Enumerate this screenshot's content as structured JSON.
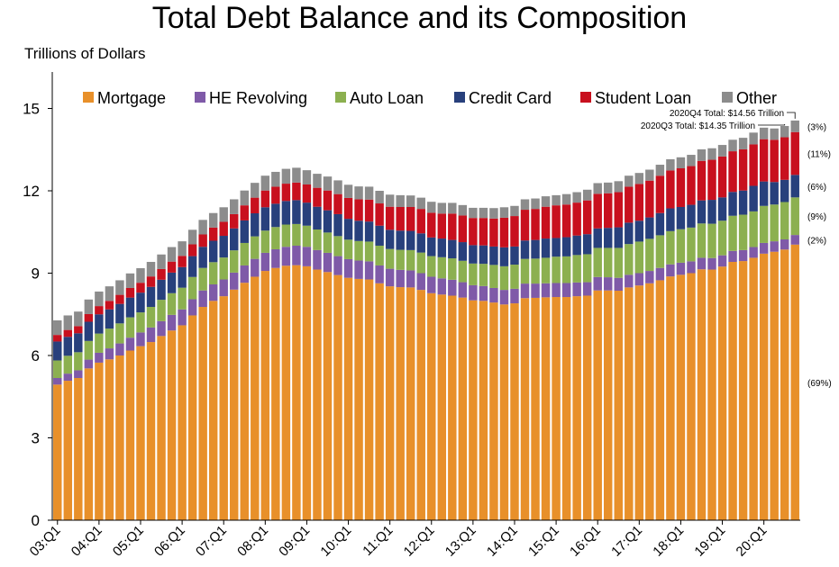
{
  "chart_data": {
    "type": "bar",
    "stacked": true,
    "title": "Total Debt Balance and its Composition",
    "ylabel": "Trillions of Dollars",
    "ylim": [
      0,
      16
    ],
    "yticks": [
      0,
      3,
      6,
      9,
      12,
      15
    ],
    "legend_position": "top",
    "x_tick_labels": [
      "03:Q1",
      "04:Q1",
      "05:Q1",
      "06:Q1",
      "07:Q1",
      "08:Q1",
      "09:Q1",
      "10:Q1",
      "11:Q1",
      "12:Q1",
      "13:Q1",
      "14:Q1",
      "15:Q1",
      "16:Q1",
      "17:Q1",
      "18:Q1",
      "19:Q1",
      "20:Q1"
    ],
    "x_tick_every": 4,
    "categories": [
      "2003Q1",
      "2003Q2",
      "2003Q3",
      "2003Q4",
      "2004Q1",
      "2004Q2",
      "2004Q3",
      "2004Q4",
      "2005Q1",
      "2005Q2",
      "2005Q3",
      "2005Q4",
      "2006Q1",
      "2006Q2",
      "2006Q3",
      "2006Q4",
      "2007Q1",
      "2007Q2",
      "2007Q3",
      "2007Q4",
      "2008Q1",
      "2008Q2",
      "2008Q3",
      "2008Q4",
      "2009Q1",
      "2009Q2",
      "2009Q3",
      "2009Q4",
      "2010Q1",
      "2010Q2",
      "2010Q3",
      "2010Q4",
      "2011Q1",
      "2011Q2",
      "2011Q3",
      "2011Q4",
      "2012Q1",
      "2012Q2",
      "2012Q3",
      "2012Q4",
      "2013Q1",
      "2013Q2",
      "2013Q3",
      "2013Q4",
      "2014Q1",
      "2014Q2",
      "2014Q3",
      "2014Q4",
      "2015Q1",
      "2015Q2",
      "2015Q3",
      "2015Q4",
      "2016Q1",
      "2016Q2",
      "2016Q3",
      "2016Q4",
      "2017Q1",
      "2017Q2",
      "2017Q3",
      "2017Q4",
      "2018Q1",
      "2018Q2",
      "2018Q3",
      "2018Q4",
      "2019Q1",
      "2019Q2",
      "2019Q3",
      "2019Q4",
      "2020Q1",
      "2020Q2",
      "2020Q3",
      "2020Q4"
    ],
    "series": [
      {
        "name": "Mortgage",
        "color": "#e8902a",
        "values": [
          4.94,
          5.08,
          5.18,
          5.53,
          5.74,
          5.86,
          6.0,
          6.18,
          6.34,
          6.49,
          6.71,
          6.91,
          7.1,
          7.46,
          7.77,
          7.99,
          8.16,
          8.4,
          8.65,
          8.87,
          9.08,
          9.19,
          9.27,
          9.29,
          9.25,
          9.13,
          9.04,
          8.93,
          8.83,
          8.79,
          8.77,
          8.63,
          8.52,
          8.49,
          8.48,
          8.39,
          8.27,
          8.22,
          8.18,
          8.11,
          8.01,
          7.99,
          7.93,
          7.86,
          7.9,
          8.09,
          8.1,
          8.12,
          8.13,
          8.13,
          8.16,
          8.18,
          8.37,
          8.37,
          8.36,
          8.48,
          8.55,
          8.63,
          8.74,
          8.88,
          8.94,
          9.0,
          9.14,
          9.13,
          9.24,
          9.41,
          9.44,
          9.56,
          9.71,
          9.78,
          9.86,
          10.04
        ]
      },
      {
        "name": "HE Revolving",
        "color": "#7f5aa8",
        "values": [
          0.24,
          0.26,
          0.28,
          0.32,
          0.36,
          0.4,
          0.44,
          0.47,
          0.5,
          0.53,
          0.54,
          0.57,
          0.58,
          0.59,
          0.6,
          0.6,
          0.61,
          0.62,
          0.63,
          0.65,
          0.66,
          0.68,
          0.69,
          0.71,
          0.71,
          0.71,
          0.7,
          0.69,
          0.68,
          0.67,
          0.66,
          0.65,
          0.64,
          0.63,
          0.62,
          0.61,
          0.6,
          0.59,
          0.58,
          0.56,
          0.55,
          0.54,
          0.53,
          0.53,
          0.53,
          0.53,
          0.52,
          0.51,
          0.51,
          0.51,
          0.5,
          0.49,
          0.49,
          0.48,
          0.47,
          0.46,
          0.45,
          0.45,
          0.45,
          0.44,
          0.44,
          0.43,
          0.42,
          0.42,
          0.41,
          0.4,
          0.4,
          0.39,
          0.39,
          0.38,
          0.37,
          0.35
        ]
      },
      {
        "name": "Auto Loan",
        "color": "#8cb050",
        "values": [
          0.64,
          0.65,
          0.66,
          0.68,
          0.7,
          0.72,
          0.73,
          0.74,
          0.73,
          0.75,
          0.78,
          0.79,
          0.79,
          0.81,
          0.82,
          0.81,
          0.8,
          0.81,
          0.82,
          0.82,
          0.81,
          0.81,
          0.81,
          0.79,
          0.77,
          0.75,
          0.74,
          0.73,
          0.71,
          0.71,
          0.72,
          0.72,
          0.72,
          0.73,
          0.74,
          0.75,
          0.75,
          0.77,
          0.78,
          0.78,
          0.79,
          0.81,
          0.84,
          0.86,
          0.88,
          0.9,
          0.91,
          0.93,
          0.96,
          0.97,
          1.0,
          1.02,
          1.06,
          1.07,
          1.09,
          1.12,
          1.15,
          1.17,
          1.19,
          1.21,
          1.22,
          1.23,
          1.25,
          1.25,
          1.26,
          1.28,
          1.29,
          1.3,
          1.35,
          1.34,
          1.36,
          1.37
        ]
      },
      {
        "name": "Credit Card",
        "color": "#28407c",
        "values": [
          0.69,
          0.69,
          0.69,
          0.7,
          0.7,
          0.7,
          0.71,
          0.72,
          0.72,
          0.73,
          0.73,
          0.75,
          0.75,
          0.76,
          0.77,
          0.78,
          0.79,
          0.8,
          0.82,
          0.84,
          0.85,
          0.85,
          0.86,
          0.87,
          0.84,
          0.83,
          0.81,
          0.8,
          0.76,
          0.74,
          0.73,
          0.73,
          0.7,
          0.7,
          0.7,
          0.7,
          0.68,
          0.68,
          0.67,
          0.68,
          0.67,
          0.67,
          0.67,
          0.69,
          0.66,
          0.67,
          0.68,
          0.7,
          0.68,
          0.7,
          0.71,
          0.73,
          0.71,
          0.73,
          0.75,
          0.78,
          0.76,
          0.78,
          0.81,
          0.83,
          0.81,
          0.83,
          0.84,
          0.87,
          0.85,
          0.87,
          0.88,
          0.93,
          0.89,
          0.82,
          0.81,
          0.82
        ]
      },
      {
        "name": "Student Loan",
        "color": "#c8101e",
        "values": [
          0.24,
          0.25,
          0.26,
          0.28,
          0.3,
          0.31,
          0.33,
          0.35,
          0.36,
          0.38,
          0.39,
          0.4,
          0.41,
          0.43,
          0.45,
          0.48,
          0.51,
          0.52,
          0.55,
          0.57,
          0.61,
          0.62,
          0.63,
          0.64,
          0.66,
          0.69,
          0.72,
          0.73,
          0.76,
          0.78,
          0.8,
          0.81,
          0.84,
          0.86,
          0.87,
          0.89,
          0.9,
          0.91,
          0.96,
          0.97,
          0.99,
          1.0,
          1.02,
          1.08,
          1.11,
          1.12,
          1.13,
          1.16,
          1.19,
          1.19,
          1.2,
          1.23,
          1.26,
          1.26,
          1.28,
          1.31,
          1.34,
          1.34,
          1.36,
          1.38,
          1.41,
          1.41,
          1.44,
          1.46,
          1.49,
          1.48,
          1.5,
          1.51,
          1.54,
          1.54,
          1.55,
          1.56
        ]
      },
      {
        "name": "Other",
        "color": "#8c8c8c",
        "values": [
          0.53,
          0.53,
          0.53,
          0.53,
          0.53,
          0.53,
          0.53,
          0.53,
          0.53,
          0.53,
          0.53,
          0.53,
          0.53,
          0.53,
          0.53,
          0.53,
          0.53,
          0.54,
          0.54,
          0.54,
          0.54,
          0.54,
          0.54,
          0.54,
          0.52,
          0.51,
          0.51,
          0.5,
          0.48,
          0.47,
          0.47,
          0.46,
          0.44,
          0.43,
          0.42,
          0.41,
          0.4,
          0.39,
          0.39,
          0.38,
          0.37,
          0.37,
          0.38,
          0.38,
          0.37,
          0.38,
          0.38,
          0.38,
          0.37,
          0.38,
          0.38,
          0.39,
          0.39,
          0.39,
          0.4,
          0.4,
          0.4,
          0.4,
          0.4,
          0.41,
          0.4,
          0.41,
          0.42,
          0.42,
          0.42,
          0.42,
          0.42,
          0.43,
          0.42,
          0.41,
          0.41,
          0.42
        ]
      }
    ],
    "annotations": [
      {
        "text": "2020Q4 Total: $14.56 Trillion",
        "target_index": 71
      },
      {
        "text": "2020Q3 Total: $14.35 Trillion",
        "target_index": 70
      }
    ],
    "share_labels": [
      {
        "series": "Mortgage",
        "text": "(69%)"
      },
      {
        "series": "HE Revolving",
        "text": "(2%)"
      },
      {
        "series": "Auto Loan",
        "text": "(9%)"
      },
      {
        "series": "Credit Card",
        "text": "(6%)"
      },
      {
        "series": "Student Loan",
        "text": "(11%)"
      },
      {
        "series": "Other",
        "text": "(3%)"
      }
    ]
  }
}
